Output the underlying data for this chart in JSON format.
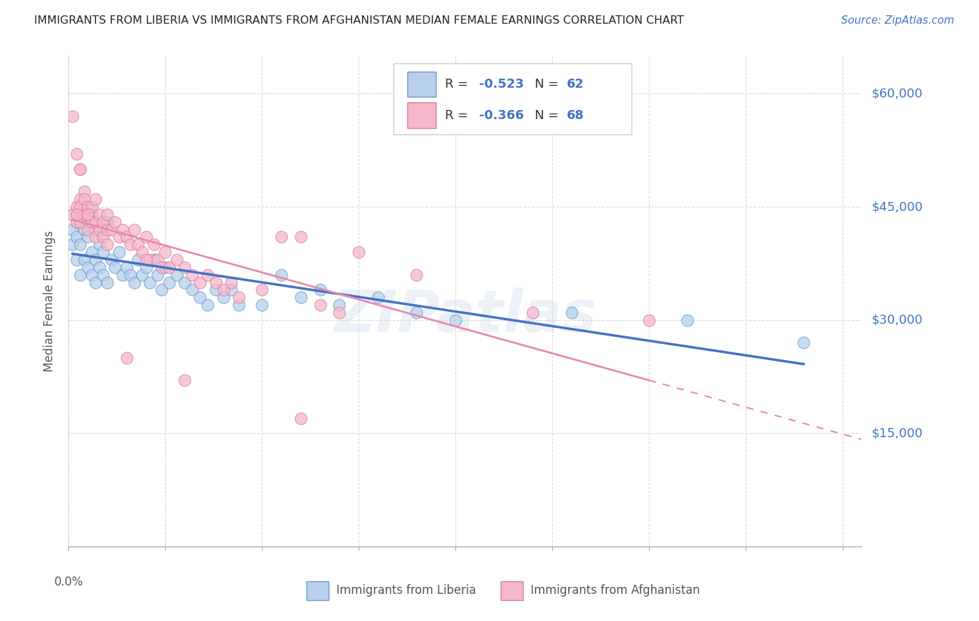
{
  "title": "IMMIGRANTS FROM LIBERIA VS IMMIGRANTS FROM AFGHANISTAN MEDIAN FEMALE EARNINGS CORRELATION CHART",
  "source": "Source: ZipAtlas.com",
  "ylabel": "Median Female Earnings",
  "ytick_labels": [
    "$15,000",
    "$30,000",
    "$45,000",
    "$60,000"
  ],
  "ytick_values": [
    15000,
    30000,
    45000,
    60000
  ],
  "ylim": [
    0,
    65000
  ],
  "xlim": [
    0.0,
    0.205
  ],
  "R_liberia": -0.523,
  "N_liberia": 62,
  "R_afghanistan": -0.366,
  "N_afghanistan": 68,
  "color_liberia_fill": "#b8d0ea",
  "color_liberia_edge": "#6699cc",
  "color_afghanistan_fill": "#f5b8cb",
  "color_afghanistan_edge": "#dd7799",
  "color_line_liberia": "#4472c4",
  "color_line_afghanistan": "#e88aaa",
  "color_source": "#4472c4",
  "color_rtick": "#4472c4",
  "bottom_legend_liberia": "Immigrants from Liberia",
  "bottom_legend_afghanistan": "Immigrants from Afghanistan",
  "liberia_scatter_x": [
    0.001,
    0.001,
    0.002,
    0.002,
    0.002,
    0.003,
    0.003,
    0.003,
    0.004,
    0.004,
    0.004,
    0.005,
    0.005,
    0.005,
    0.006,
    0.006,
    0.006,
    0.007,
    0.007,
    0.007,
    0.008,
    0.008,
    0.009,
    0.009,
    0.01,
    0.01,
    0.011,
    0.012,
    0.013,
    0.014,
    0.015,
    0.016,
    0.017,
    0.018,
    0.019,
    0.02,
    0.021,
    0.022,
    0.023,
    0.024,
    0.025,
    0.026,
    0.028,
    0.03,
    0.032,
    0.034,
    0.036,
    0.038,
    0.04,
    0.042,
    0.044,
    0.05,
    0.055,
    0.06,
    0.065,
    0.07,
    0.08,
    0.09,
    0.1,
    0.13,
    0.16,
    0.19
  ],
  "liberia_scatter_y": [
    40000,
    42000,
    38000,
    43000,
    41000,
    36000,
    40000,
    44000,
    38000,
    42000,
    45000,
    37000,
    41000,
    43000,
    36000,
    39000,
    44000,
    35000,
    38000,
    42000,
    37000,
    40000,
    36000,
    39000,
    35000,
    43000,
    38000,
    37000,
    39000,
    36000,
    37000,
    36000,
    35000,
    38000,
    36000,
    37000,
    35000,
    38000,
    36000,
    34000,
    37000,
    35000,
    36000,
    35000,
    34000,
    33000,
    32000,
    34000,
    33000,
    34000,
    32000,
    32000,
    36000,
    33000,
    34000,
    32000,
    33000,
    31000,
    30000,
    31000,
    30000,
    27000
  ],
  "afghanistan_scatter_x": [
    0.001,
    0.001,
    0.002,
    0.002,
    0.002,
    0.003,
    0.003,
    0.003,
    0.003,
    0.004,
    0.004,
    0.004,
    0.005,
    0.005,
    0.005,
    0.006,
    0.006,
    0.007,
    0.007,
    0.007,
    0.008,
    0.008,
    0.009,
    0.009,
    0.01,
    0.01,
    0.011,
    0.012,
    0.013,
    0.014,
    0.015,
    0.016,
    0.017,
    0.018,
    0.019,
    0.02,
    0.021,
    0.022,
    0.023,
    0.024,
    0.025,
    0.026,
    0.028,
    0.03,
    0.032,
    0.034,
    0.036,
    0.038,
    0.04,
    0.042,
    0.044,
    0.05,
    0.055,
    0.06,
    0.065,
    0.075,
    0.09,
    0.12,
    0.15,
    0.002,
    0.003,
    0.005,
    0.06,
    0.03,
    0.01,
    0.02,
    0.015,
    0.07
  ],
  "afghanistan_scatter_y": [
    57000,
    44000,
    52000,
    45000,
    43000,
    50000,
    46000,
    43000,
    45000,
    47000,
    44000,
    46000,
    44000,
    42000,
    45000,
    43000,
    45000,
    43000,
    46000,
    41000,
    44000,
    42000,
    43000,
    41000,
    44000,
    42000,
    42000,
    43000,
    41000,
    42000,
    41000,
    40000,
    42000,
    40000,
    39000,
    41000,
    38000,
    40000,
    38000,
    37000,
    39000,
    37000,
    38000,
    37000,
    36000,
    35000,
    36000,
    35000,
    34000,
    35000,
    33000,
    34000,
    41000,
    41000,
    32000,
    39000,
    36000,
    31000,
    30000,
    44000,
    50000,
    44000,
    17000,
    22000,
    40000,
    38000,
    25000,
    31000
  ]
}
